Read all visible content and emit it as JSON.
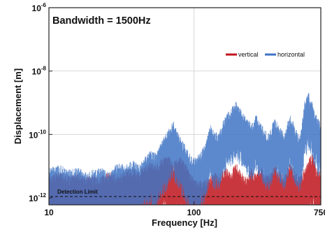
{
  "chart_data": {
    "type": "line",
    "title": "Bandwidth = 1500Hz",
    "xlabel": "Frequency [Hz]",
    "ylabel": "Displacement [m]",
    "xscale": "log",
    "yscale": "log",
    "xlim": [
      10,
      750
    ],
    "ylim": [
      6e-13,
      1e-06
    ],
    "grid": true,
    "legend_placement": "top-right",
    "x_ticks": [
      {
        "value": 10,
        "label": "10"
      },
      {
        "value": 100,
        "label": "100"
      },
      {
        "value": 750,
        "label": "750"
      }
    ],
    "y_ticks": [
      {
        "value": 1e-06,
        "base": "10",
        "exp": "-6"
      },
      {
        "value": 1e-08,
        "base": "10",
        "exp": "-8"
      },
      {
        "value": 1e-10,
        "base": "10",
        "exp": "-10"
      },
      {
        "value": 1e-12,
        "base": "10",
        "exp": "-12"
      }
    ],
    "annotations": [
      {
        "text": "Detection Limit",
        "y": 1.1e-12,
        "style": "dashed"
      }
    ],
    "series": [
      {
        "name": "vertical",
        "color": "#c0141c",
        "x": [
          10,
          12,
          14,
          16,
          18,
          20,
          23,
          26,
          30,
          34,
          38,
          42,
          46,
          50,
          55,
          60,
          66,
          72,
          80,
          88,
          95,
          100,
          110,
          120,
          130,
          140,
          150,
          165,
          180,
          195,
          210,
          230,
          250,
          270,
          290,
          310,
          330,
          360,
          390,
          420,
          460,
          500,
          540,
          580,
          620,
          660,
          700,
          750
        ],
        "values": [
          2.5e-12,
          3e-12,
          2.2e-12,
          2.6e-12,
          2e-12,
          2.4e-12,
          2.2e-12,
          3e-12,
          2.5e-12,
          3.5e-12,
          4e-12,
          3e-12,
          5e-12,
          6e-12,
          5e-12,
          8e-12,
          1e-11,
          6e-12,
          1e-11,
          6e-12,
          3e-12,
          2e-12,
          1.6e-12,
          1.8e-12,
          2.2e-12,
          3e-12,
          2.5e-12,
          4e-12,
          3e-12,
          6e-12,
          3e-12,
          2.2e-12,
          4e-12,
          2.5e-12,
          5e-12,
          2.2e-12,
          3e-12,
          5e-12,
          3e-12,
          2.2e-12,
          6e-12,
          3e-12,
          2.2e-12,
          4e-12,
          8e-12,
          1.2e-11,
          4e-12,
          3e-12
        ]
      },
      {
        "name": "horizontal",
        "color": "#3f74c4",
        "x": [
          10,
          12,
          14,
          16,
          18,
          20,
          23,
          26,
          30,
          34,
          38,
          42,
          46,
          50,
          55,
          60,
          66,
          72,
          80,
          88,
          95,
          100,
          110,
          120,
          130,
          140,
          150,
          165,
          180,
          195,
          210,
          230,
          250,
          270,
          290,
          310,
          330,
          360,
          390,
          420,
          460,
          500,
          540,
          580,
          620,
          660,
          700,
          750
        ],
        "values": [
          4e-12,
          5e-12,
          3.5e-12,
          4e-12,
          3e-12,
          3.5e-12,
          4e-12,
          3e-12,
          6e-12,
          5e-12,
          7e-12,
          5e-12,
          1e-11,
          1.5e-11,
          1.2e-11,
          3e-11,
          6e-11,
          1.2e-10,
          4e-11,
          2e-11,
          1e-11,
          8e-12,
          1.2e-11,
          2.5e-11,
          1e-10,
          5e-11,
          6e-11,
          2e-10,
          3e-10,
          5e-10,
          3e-10,
          1.5e-10,
          1e-10,
          2e-10,
          1e-10,
          6e-11,
          5e-11,
          1.5e-10,
          8e-11,
          5e-11,
          2e-10,
          8e-11,
          4e-11,
          5e-10,
          1e-09,
          4e-10,
          2e-10,
          1e-10
        ]
      }
    ]
  }
}
